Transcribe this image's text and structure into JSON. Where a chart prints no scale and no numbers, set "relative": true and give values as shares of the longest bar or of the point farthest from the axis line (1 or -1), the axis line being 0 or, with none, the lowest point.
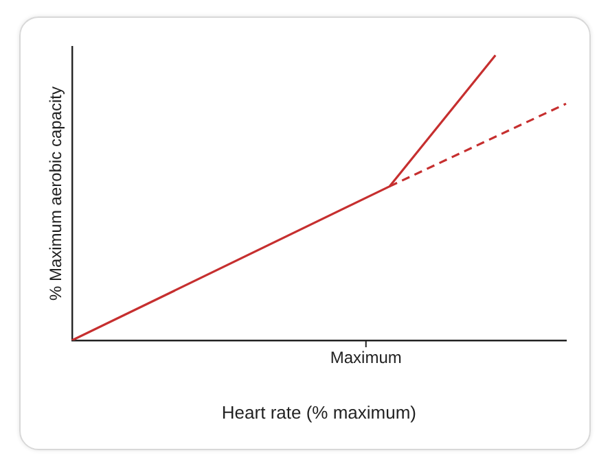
{
  "chart_data": {
    "type": "line",
    "xlabel": "Heart rate (% maximum)",
    "ylabel": "% Maximum aerobic capacity",
    "relative": true,
    "grid": false,
    "legend": false,
    "marker": "none",
    "annotations": [
      "Maximum"
    ],
    "categories": [
      null,
      null,
      null,
      null,
      null,
      null,
      null,
      null,
      null,
      null,
      null,
      null,
      null,
      null,
      null,
      null,
      null,
      null,
      null,
      null,
      null,
      null,
      null,
      null,
      null,
      null,
      null,
      null,
      null,
      null,
      null,
      null,
      null,
      null,
      null,
      null,
      null,
      null,
      null,
      null,
      null,
      null,
      null
    ],
    "series": [
      {
        "color": "#c62f2f",
        "line_style": "solid",
        "values": [
          0,
          null,
          null,
          null,
          null,
          null,
          null,
          null,
          null,
          null,
          null,
          null,
          null,
          null,
          null,
          null,
          null,
          null,
          null,
          null,
          null,
          null,
          null,
          null,
          null,
          null,
          null,
          0.54,
          null,
          null,
          null,
          null,
          null,
          null,
          null,
          null,
          1,
          null,
          null,
          null,
          null,
          null,
          null
        ]
      },
      {
        "color": "#c62f2f",
        "line_style": "dashed",
        "values": [
          null,
          null,
          null,
          null,
          null,
          null,
          null,
          null,
          null,
          null,
          null,
          null,
          null,
          null,
          null,
          null,
          null,
          null,
          null,
          null,
          null,
          null,
          null,
          null,
          null,
          null,
          null,
          0.54,
          null,
          null,
          null,
          null,
          null,
          null,
          null,
          null,
          null,
          null,
          null,
          null,
          null,
          null,
          0.83
        ]
      }
    ]
  }
}
